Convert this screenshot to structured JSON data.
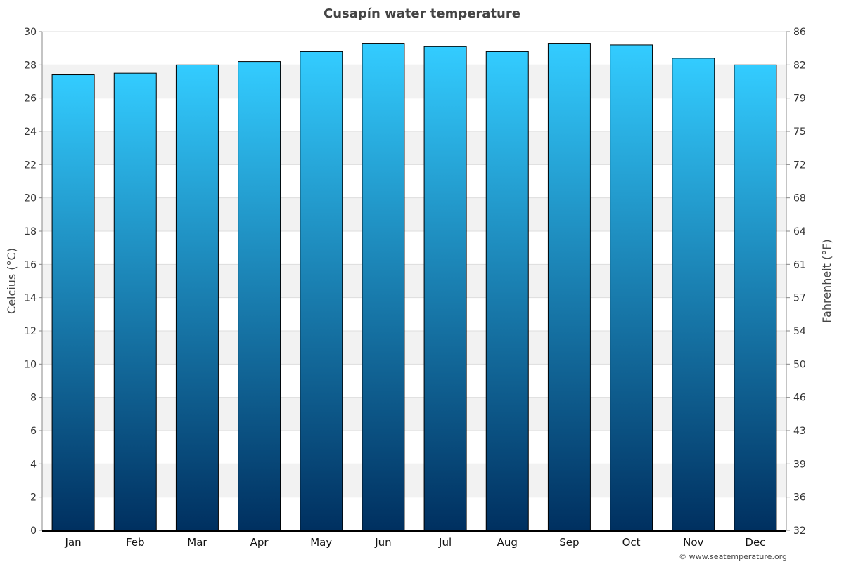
{
  "chart_data": {
    "type": "bar",
    "title": "Cusapín water temperature",
    "ylabel": "Celcius (°C)",
    "ylabel_right": "Fahrenheit (°F)",
    "categories": [
      "Jan",
      "Feb",
      "Mar",
      "Apr",
      "May",
      "Jun",
      "Jul",
      "Aug",
      "Sep",
      "Oct",
      "Nov",
      "Dec"
    ],
    "values": [
      27.4,
      27.5,
      28.0,
      28.2,
      28.8,
      29.3,
      29.1,
      28.8,
      29.3,
      29.2,
      28.4,
      28.0
    ],
    "ylim": [
      0,
      30
    ],
    "yticks": [
      "0",
      "2",
      "4",
      "6",
      "8",
      "10",
      "12",
      "14",
      "16",
      "18",
      "20",
      "22",
      "24",
      "26",
      "28",
      "30"
    ],
    "yticks_right": [
      "32",
      "36",
      "39",
      "43",
      "46",
      "50",
      "54",
      "57",
      "61",
      "64",
      "68",
      "72",
      "75",
      "79",
      "82",
      "86"
    ],
    "grid": true,
    "colors": {
      "bar_top": "#33ccff",
      "bar_bottom": "#003060",
      "band": "#f2f2f2"
    }
  },
  "footer": "© www.seatemperature.org"
}
